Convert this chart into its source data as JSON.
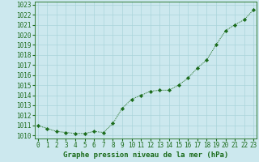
{
  "x": [
    0,
    1,
    2,
    3,
    4,
    5,
    6,
    7,
    8,
    9,
    10,
    11,
    12,
    13,
    14,
    15,
    16,
    17,
    18,
    19,
    20,
    21,
    22,
    23
  ],
  "y": [
    1011.0,
    1010.7,
    1010.4,
    1010.3,
    1010.2,
    1010.2,
    1010.4,
    1010.3,
    1011.2,
    1012.7,
    1013.6,
    1014.0,
    1014.4,
    1014.5,
    1014.5,
    1015.0,
    1015.7,
    1016.7,
    1017.5,
    1019.0,
    1020.4,
    1021.0,
    1021.5,
    1022.5
  ],
  "xlim": [
    -0.3,
    23.3
  ],
  "ylim": [
    1009.7,
    1023.3
  ],
  "yticks": [
    1010,
    1011,
    1012,
    1013,
    1014,
    1015,
    1016,
    1017,
    1018,
    1019,
    1020,
    1021,
    1022,
    1023
  ],
  "xticks": [
    0,
    1,
    2,
    3,
    4,
    5,
    6,
    7,
    8,
    9,
    10,
    11,
    12,
    13,
    14,
    15,
    16,
    17,
    18,
    19,
    20,
    21,
    22,
    23
  ],
  "xlabel": "Graphe pression niveau de la mer (hPa)",
  "line_color": "#1a6b1a",
  "marker": "D",
  "marker_size": 2.2,
  "bg_color": "#cce8ee",
  "grid_color": "#aad4da",
  "tick_fontsize": 5.5,
  "xlabel_fontsize": 6.5,
  "title": ""
}
